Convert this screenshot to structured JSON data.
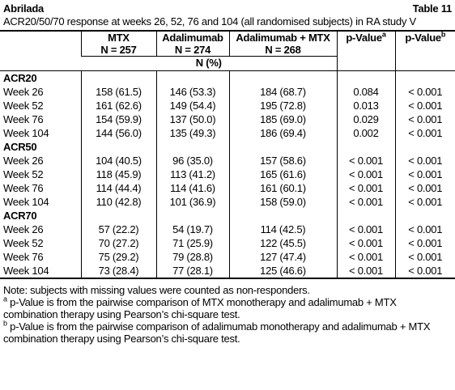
{
  "header": {
    "title": "Abrilada",
    "table_label": "Table 11",
    "caption": "ACR20/50/70 response at weeks 26, 52, 76 and 104 (all randomised subjects) in RA study V"
  },
  "table": {
    "columns": [
      {
        "name": "MTX",
        "n": "N = 257"
      },
      {
        "name": "Adalimumab",
        "n": "N = 274"
      },
      {
        "name": "Adalimumab + MTX",
        "n": "N = 268"
      }
    ],
    "unit_row": "N (%)",
    "p_columns": [
      {
        "label": "p-Value",
        "sup": "a"
      },
      {
        "label": "p-Value",
        "sup": "b"
      }
    ],
    "groups": [
      {
        "name": "ACR20",
        "rows": [
          [
            "Week 26",
            "158 (61.5)",
            "146 (53.3)",
            "184 (68.7)",
            "0.084",
            "< 0.001"
          ],
          [
            "Week 52",
            "161 (62.6)",
            "149 (54.4)",
            "195 (72.8)",
            "0.013",
            "< 0.001"
          ],
          [
            "Week 76",
            "154 (59.9)",
            "137 (50.0)",
            "185 (69.0)",
            "0.029",
            "< 0.001"
          ],
          [
            "Week 104",
            "144 (56.0)",
            "135 (49.3)",
            "186 (69.4)",
            "0.002",
            "< 0.001"
          ]
        ]
      },
      {
        "name": "ACR50",
        "rows": [
          [
            "Week 26",
            "104 (40.5)",
            "96 (35.0)",
            "157 (58.6)",
            "< 0.001",
            "< 0.001"
          ],
          [
            "Week 52",
            "118 (45.9)",
            "113 (41.2)",
            "165 (61.6)",
            "< 0.001",
            "< 0.001"
          ],
          [
            "Week 76",
            "114 (44.4)",
            "114 (41.6)",
            "161 (60.1)",
            "< 0.001",
            "< 0.001"
          ],
          [
            "Week 104",
            "110 (42.8)",
            "101 (36.9)",
            "158 (59.0)",
            "< 0.001",
            "< 0.001"
          ]
        ]
      },
      {
        "name": "ACR70",
        "rows": [
          [
            "Week 26",
            "57 (22.2)",
            "54 (19.7)",
            "114 (42.5)",
            "< 0.001",
            "< 0.001"
          ],
          [
            "Week 52",
            "70 (27.2)",
            "71 (25.9)",
            "122 (45.5)",
            "< 0.001",
            "< 0.001"
          ],
          [
            "Week 76",
            "75 (29.2)",
            "79 (28.8)",
            "127 (47.4)",
            "< 0.001",
            "< 0.001"
          ],
          [
            "Week 104",
            "73 (28.4)",
            "77 (28.1)",
            "125 (46.6)",
            "< 0.001",
            "< 0.001"
          ]
        ]
      }
    ]
  },
  "footnotes": {
    "note": "Note: subjects with missing values were counted as non-responders.",
    "items": [
      {
        "mark": "a",
        "text": "p-Value is from the pairwise comparison of MTX monotherapy and adalimumab + MTX combination therapy using Pearson’s chi-square test."
      },
      {
        "mark": "b",
        "text": "p-Value is from the pairwise comparison of adalimumab monotherapy and adalimumab + MTX combination therapy using Pearson’s chi-square test."
      }
    ]
  }
}
